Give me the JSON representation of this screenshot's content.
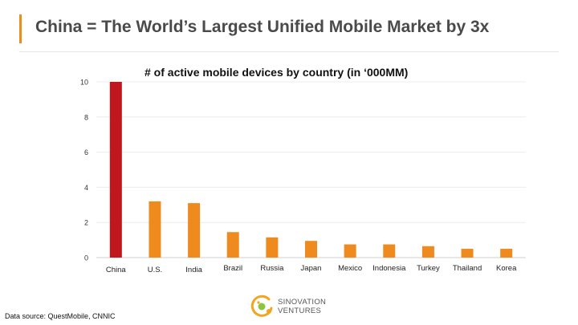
{
  "slide": {
    "title": "China = The World’s Largest Unified Mobile Market by 3x",
    "source": "Data source: QuestMobile, CNNIC",
    "logo": {
      "line1": "SINOVATION",
      "line2": "VENTURES"
    }
  },
  "colors": {
    "accent": "#e8901e",
    "china_bar": "#c0161d",
    "other_bars": "#ef8a1e"
  },
  "chart_data": {
    "type": "bar",
    "title": "# of active mobile devices by country (in ‘000MM)",
    "categories": [
      "China",
      "U.S.",
      "India",
      "Brazil",
      "Russia",
      "Japan",
      "Mexico",
      "Indonesia",
      "Turkey",
      "Thailand",
      "Korea"
    ],
    "values": [
      10.0,
      3.2,
      3.1,
      1.45,
      1.15,
      0.95,
      0.75,
      0.75,
      0.65,
      0.5,
      0.5
    ],
    "yticks": [
      0,
      2,
      4,
      6,
      8,
      10
    ],
    "ylim": [
      0,
      10
    ],
    "xlabel": "",
    "ylabel": "",
    "grid": true,
    "legend": "none"
  }
}
